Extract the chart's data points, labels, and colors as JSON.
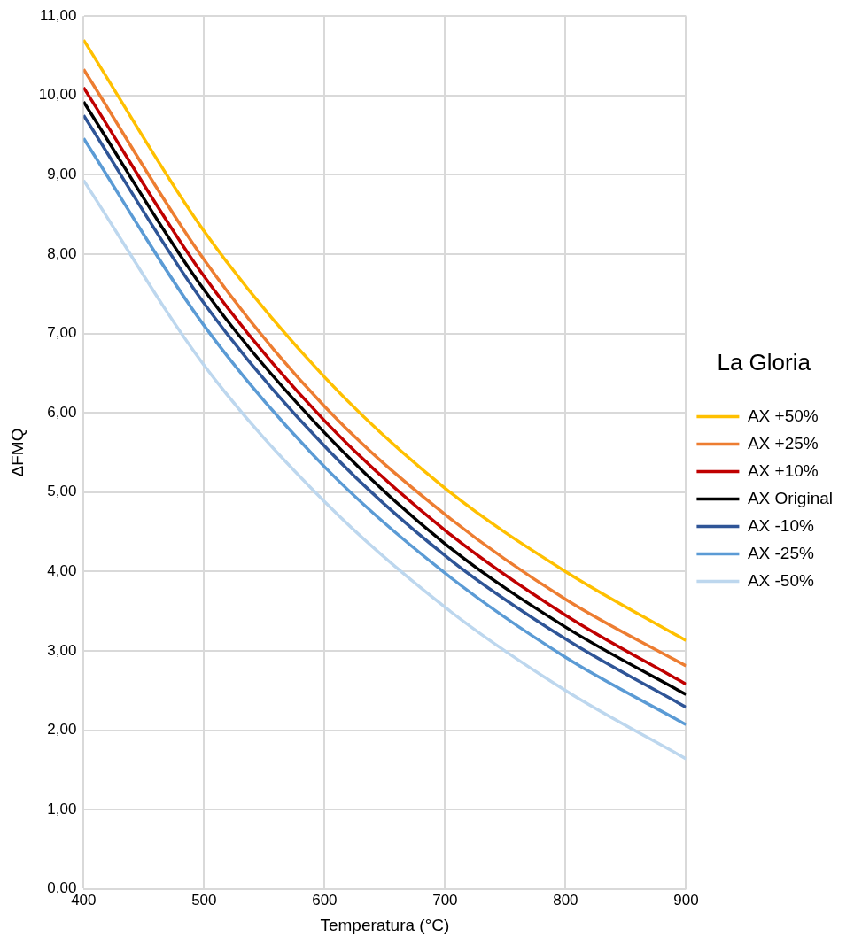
{
  "chart_data": {
    "type": "line",
    "xlabel": "Temperatura (°C)",
    "ylabel": "ΔFMQ",
    "legend_title": "La Gloria",
    "legend": "right",
    "grid": true,
    "marker": "none",
    "line_style": "solid",
    "x": [
      400,
      500,
      600,
      700,
      800,
      900
    ],
    "xlim": [
      400,
      900
    ],
    "xticks": [
      400,
      500,
      600,
      700,
      800,
      900
    ],
    "ylim": [
      0,
      11
    ],
    "yticks": [
      {
        "value": 0,
        "label": "0,00"
      },
      {
        "value": 1,
        "label": "1,00"
      },
      {
        "value": 2,
        "label": "2,00"
      },
      {
        "value": 3,
        "label": "3,00"
      },
      {
        "value": 4,
        "label": "4,00"
      },
      {
        "value": 5,
        "label": "5,00"
      },
      {
        "value": 6,
        "label": "6,00"
      },
      {
        "value": 7,
        "label": "7,00"
      },
      {
        "value": 8,
        "label": "8,00"
      },
      {
        "value": 9,
        "label": "9,00"
      },
      {
        "value": 10,
        "label": "10,00"
      },
      {
        "value": 11,
        "label": "11,00"
      }
    ],
    "series": [
      {
        "name": "AX +50%",
        "color": "#ffc000",
        "values": [
          10.7,
          8.29,
          6.45,
          5.05,
          4.0,
          3.13
        ]
      },
      {
        "name": "AX +25%",
        "color": "#ed7d31",
        "values": [
          10.33,
          7.93,
          6.08,
          4.72,
          3.65,
          2.81
        ]
      },
      {
        "name": "AX +10%",
        "color": "#c00000",
        "values": [
          10.1,
          7.72,
          5.9,
          4.52,
          3.45,
          2.58
        ]
      },
      {
        "name": "AX Original",
        "color": "#000000",
        "values": [
          9.92,
          7.55,
          5.75,
          4.35,
          3.3,
          2.45
        ]
      },
      {
        "name": "AX -10%",
        "color": "#2f5597",
        "values": [
          9.75,
          7.38,
          5.58,
          4.2,
          3.15,
          2.29
        ]
      },
      {
        "name": "AX -25%",
        "color": "#5b9bd5",
        "values": [
          9.46,
          7.1,
          5.32,
          3.98,
          2.92,
          2.07
        ]
      },
      {
        "name": "AX -50%",
        "color": "#bdd7ee",
        "values": [
          8.93,
          6.6,
          4.88,
          3.55,
          2.5,
          1.64
        ]
      }
    ]
  }
}
